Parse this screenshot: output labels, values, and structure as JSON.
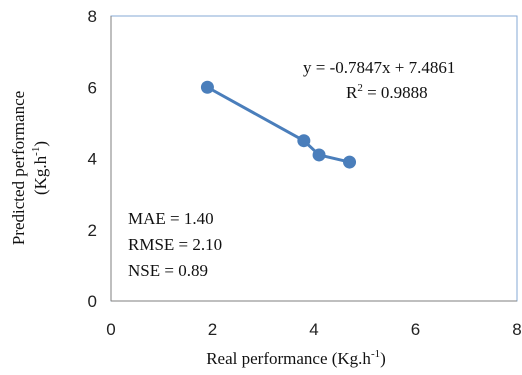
{
  "chart_data": {
    "type": "scatter",
    "x": [
      1.9,
      3.8,
      4.1,
      4.7
    ],
    "y": [
      6.0,
      4.5,
      4.1,
      3.9
    ],
    "xlim": [
      0,
      8
    ],
    "ylim": [
      0,
      8
    ],
    "xticks": [
      "0",
      "2",
      "4",
      "6",
      "8"
    ],
    "yticks": [
      "0",
      "2",
      "4",
      "6",
      "8"
    ],
    "xlabel": {
      "main": "Real performance (Kg.h",
      "sup": "-1",
      "close": ")"
    },
    "ylabel": {
      "line1": "Predicted performance",
      "line2_main": "(Kg.h",
      "line2_sup": "-1",
      "line2_close": ")"
    },
    "equation": "y = -0.7847x + 7.4861",
    "r2": {
      "main": "R",
      "sup": "2",
      "rest": " = 0.9888"
    },
    "metrics": [
      "MAE = 1.40",
      "RMSE = 2.10",
      "NSE = 0.89"
    ],
    "grid": false,
    "colors": {
      "series": "#4A7EBB",
      "frame": "#86A9D6",
      "axis": "#7F7F7F"
    }
  }
}
